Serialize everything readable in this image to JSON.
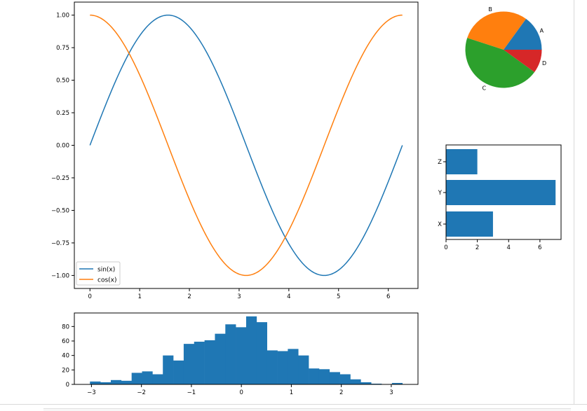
{
  "colors": {
    "blue": "#1f77b4",
    "orange": "#ff7f0e",
    "green": "#2ca02c",
    "red": "#d62728",
    "axis": "#000000"
  },
  "chart_data": [
    {
      "type": "line",
      "x_range": [
        0,
        6.2832
      ],
      "xticks": [
        "0",
        "1",
        "2",
        "3",
        "4",
        "5",
        "6"
      ],
      "yticks": [
        "1.00",
        "0.75",
        "0.50",
        "0.25",
        "0.00",
        "−0.25",
        "−0.50",
        "−0.75",
        "−1.00"
      ],
      "ylim": [
        -1.0,
        1.0
      ],
      "series": [
        {
          "name": "sin(x)",
          "function": "sin",
          "color": "#1f77b4"
        },
        {
          "name": "cos(x)",
          "function": "cos",
          "color": "#ff7f0e"
        }
      ],
      "legend": {
        "position": "lower-left",
        "items": [
          "sin(x)",
          "cos(x)"
        ]
      }
    },
    {
      "type": "pie",
      "labels": [
        "A",
        "B",
        "C",
        "D"
      ],
      "values": [
        15,
        30,
        45,
        10
      ],
      "colors": [
        "#1f77b4",
        "#ff7f0e",
        "#2ca02c",
        "#d62728"
      ],
      "start_angle": 0,
      "direction": "counterclockwise"
    },
    {
      "type": "bar",
      "orientation": "horizontal",
      "categories": [
        "X",
        "Y",
        "Z"
      ],
      "values": [
        3,
        7,
        2
      ],
      "xticks": [
        "0",
        "2",
        "4",
        "6"
      ],
      "xlim": [
        0,
        7.35
      ]
    },
    {
      "type": "bar",
      "subtype": "histogram",
      "bin_start": -3.03,
      "bin_width": 0.2084,
      "values": [
        4,
        3,
        6,
        5,
        16,
        18,
        14,
        40,
        33,
        56,
        59,
        61,
        70,
        83,
        79,
        94,
        86,
        47,
        46,
        49,
        40,
        22,
        21,
        17,
        14,
        7,
        3,
        1,
        0,
        2
      ],
      "xticks": [
        "−3",
        "−2",
        "−1",
        "0",
        "1",
        "2",
        "3"
      ],
      "yticks": [
        "0",
        "20",
        "40",
        "60",
        "80"
      ],
      "ylim": [
        0,
        98.7
      ]
    }
  ]
}
